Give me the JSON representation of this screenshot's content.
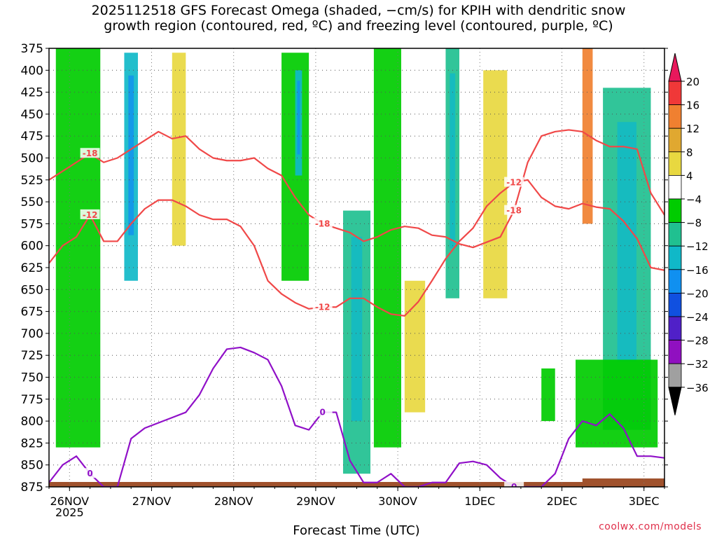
{
  "title_line1": "2025112518 GFS Forecast Omega (shaded, −cm/s) for KPIH with dendritic snow",
  "title_line2": "growth region (contoured, red, ºC) and freezing level (contoured, purple, ºC)",
  "credit": "coolwx.com/models",
  "chart_data": {
    "type": "heatmap",
    "title": "2025112518 GFS Forecast Omega (shaded, −cm/s) for KPIH with dendritic snow growth region (contoured, red, ºC) and freezing level (contoured, purple, ºC)",
    "xlabel": "Forecast Time (UTC)",
    "ylabel": "",
    "y_ticks": [
      "375",
      "400",
      "425",
      "450",
      "475",
      "500",
      "525",
      "550",
      "575",
      "600",
      "625",
      "650",
      "675",
      "700",
      "725",
      "750",
      "775",
      "800",
      "825",
      "850",
      "875"
    ],
    "y_range": [
      375,
      875
    ],
    "x_ticks": [
      "26NOV",
      "27NOV",
      "28NOV",
      "29NOV",
      "30NOV",
      "1DEC",
      "2DEC",
      "3DEC"
    ],
    "x_sublabel": "2025",
    "x_range_hours": [
      -6,
      174
    ],
    "grid": true,
    "colorbar": {
      "labels": [
        "20",
        "16",
        "12",
        "8",
        "4",
        "−4",
        "−8",
        "−12",
        "−16",
        "−20",
        "−24",
        "−28",
        "−32",
        "−36"
      ],
      "colors": [
        "#e8185c",
        "#f03838",
        "#f08030",
        "#e0a830",
        "#e8d840",
        "#ffffff",
        "#00cc00",
        "#20c090",
        "#10b8c8",
        "#1090f0",
        "#1050e0",
        "#5020c8",
        "#9010c0",
        "#a0a0a0",
        "#000000"
      ]
    },
    "omega_regions": [
      {
        "t0": -4,
        "t1": 9,
        "p0": 375,
        "p1": 830,
        "level": -6
      },
      {
        "t0": 16,
        "t1": 20,
        "p0": 380,
        "p1": 640,
        "level": -14
      },
      {
        "t0": 30,
        "t1": 34,
        "p0": 380,
        "p1": 600,
        "level": 6
      },
      {
        "t0": 62,
        "t1": 70,
        "p0": 380,
        "p1": 640,
        "level": -6
      },
      {
        "t0": 66,
        "t1": 68,
        "p0": 400,
        "p1": 520,
        "level": -14
      },
      {
        "t0": 80,
        "t1": 88,
        "p0": 560,
        "p1": 860,
        "level": -10
      },
      {
        "t0": 89,
        "t1": 97,
        "p0": 375,
        "p1": 830,
        "level": -6
      },
      {
        "t0": 98,
        "t1": 104,
        "p0": 640,
        "p1": 790,
        "level": 6
      },
      {
        "t0": 110,
        "t1": 114,
        "p0": 375,
        "p1": 660,
        "level": -10
      },
      {
        "t0": 121,
        "t1": 128,
        "p0": 400,
        "p1": 660,
        "level": 6
      },
      {
        "t0": 138,
        "t1": 142,
        "p0": 740,
        "p1": 800,
        "level": -6
      },
      {
        "t0": 150,
        "t1": 153,
        "p0": 375,
        "p1": 575,
        "level": 12
      },
      {
        "t0": 156,
        "t1": 170,
        "p0": 420,
        "p1": 810,
        "level": -8
      },
      {
        "t0": 148,
        "t1": 172,
        "p0": 730,
        "p1": 830,
        "level": -6
      }
    ],
    "contours": [
      {
        "name": "-18",
        "color": "red",
        "time": [
          -6,
          -2,
          2,
          6,
          10,
          14,
          18,
          22,
          26,
          30,
          34,
          38,
          42,
          46,
          50,
          54,
          58,
          62,
          66,
          70,
          74,
          78,
          82,
          86,
          90,
          94,
          98,
          102,
          106,
          110,
          114,
          118,
          122,
          126,
          130,
          134,
          138,
          142,
          146,
          150,
          154,
          158,
          162,
          166,
          170,
          174
        ],
        "pressure": [
          525,
          515,
          505,
          495,
          505,
          500,
          490,
          480,
          470,
          478,
          475,
          490,
          500,
          503,
          503,
          500,
          512,
          520,
          545,
          565,
          575,
          580,
          585,
          595,
          590,
          582,
          578,
          580,
          588,
          590,
          598,
          602,
          596,
          590,
          560,
          505,
          475,
          470,
          468,
          470,
          480,
          487,
          487,
          490,
          540,
          565
        ]
      },
      {
        "name": "-12",
        "color": "red",
        "time": [
          -6,
          -2,
          2,
          6,
          10,
          14,
          18,
          22,
          26,
          30,
          34,
          38,
          42,
          46,
          50,
          54,
          58,
          62,
          66,
          70,
          74,
          78,
          82,
          86,
          90,
          94,
          98,
          102,
          106,
          110,
          114,
          118,
          122,
          126,
          130,
          134,
          138,
          142,
          146,
          150,
          154,
          158,
          162,
          166,
          170,
          174
        ],
        "pressure": [
          620,
          600,
          590,
          565,
          595,
          595,
          575,
          558,
          548,
          548,
          555,
          565,
          570,
          570,
          578,
          600,
          640,
          655,
          665,
          672,
          670,
          670,
          660,
          660,
          670,
          678,
          680,
          664,
          640,
          615,
          595,
          580,
          555,
          540,
          528,
          525,
          545,
          555,
          558,
          552,
          556,
          558,
          572,
          592,
          625,
          628
        ]
      },
      {
        "name": "0",
        "color": "purple",
        "time": [
          -6,
          -2,
          2,
          6,
          10,
          14,
          18,
          22,
          26,
          30,
          34,
          38,
          42,
          46,
          50,
          54,
          58,
          62,
          66,
          70,
          74,
          78,
          82,
          86,
          90,
          94,
          98,
          102,
          106,
          110,
          114,
          118,
          122,
          126,
          130,
          134,
          138,
          142,
          146,
          150,
          154,
          158,
          162,
          166,
          170,
          174
        ],
        "pressure": [
          870,
          850,
          840,
          860,
          875,
          875,
          820,
          808,
          802,
          796,
          790,
          770,
          740,
          718,
          716,
          722,
          730,
          760,
          805,
          810,
          790,
          790,
          845,
          870,
          870,
          860,
          875,
          875,
          870,
          870,
          848,
          846,
          850,
          865,
          875,
          875,
          875,
          860,
          820,
          800,
          805,
          792,
          808,
          840,
          840,
          842
        ]
      }
    ]
  }
}
